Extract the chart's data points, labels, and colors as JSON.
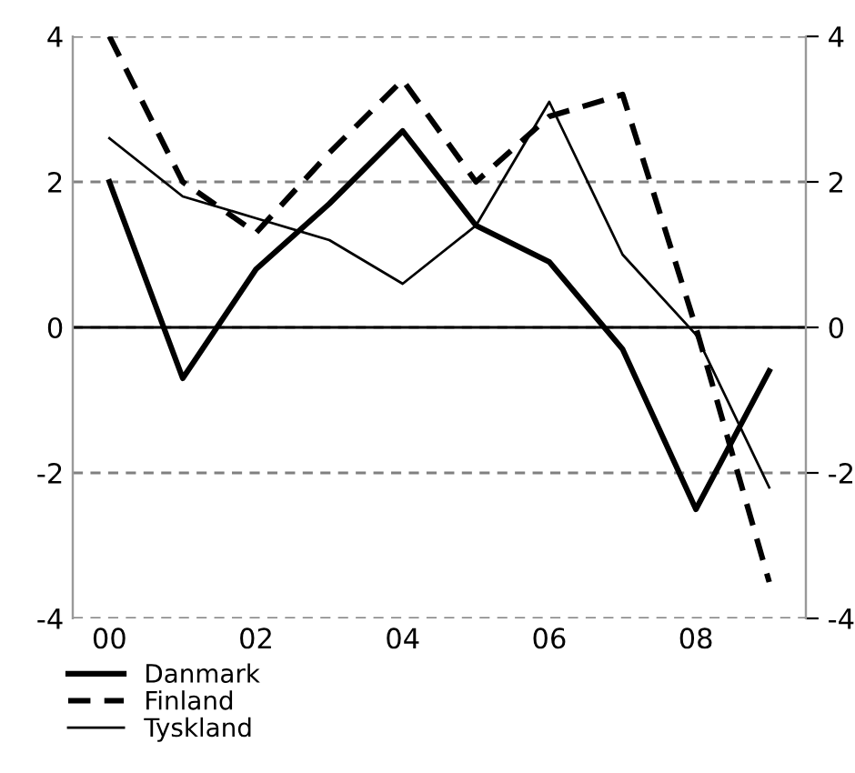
{
  "chart_data": {
    "type": "line",
    "categories": [
      "00",
      null,
      "02",
      null,
      "04",
      null,
      "06",
      null,
      "08",
      null
    ],
    "series": [
      {
        "name": "Danmark",
        "color": "#000000",
        "line_style": "solid",
        "values": [
          2.0,
          -0.7,
          0.8,
          1.7,
          2.7,
          1.4,
          0.9,
          -0.3,
          -2.5,
          -0.6
        ]
      },
      {
        "name": "Finland",
        "color": "#000000",
        "line_style": "dashed",
        "values": [
          4.0,
          2.0,
          1.3,
          2.4,
          3.4,
          2.0,
          2.9,
          3.2,
          0.0,
          -3.5
        ]
      },
      {
        "name": "Tyskland",
        "color": "#000000",
        "line_style": "solid",
        "values": [
          2.6,
          1.8,
          1.5,
          1.2,
          0.6,
          1.4,
          3.1,
          1.0,
          -0.1,
          -2.2
        ]
      }
    ],
    "ylim": [
      -4,
      4
    ],
    "yticks": [
      -4,
      -2,
      0,
      2,
      4
    ],
    "y2lim": [
      -4,
      4
    ],
    "y2ticks": [
      -4,
      -2,
      0,
      2,
      4
    ],
    "grid": "y",
    "ref_lines": [
      {
        "axis": "y",
        "value": 0,
        "color": "#000000",
        "line_style": "solid"
      }
    ],
    "legend": "bottom",
    "marker": "none"
  }
}
